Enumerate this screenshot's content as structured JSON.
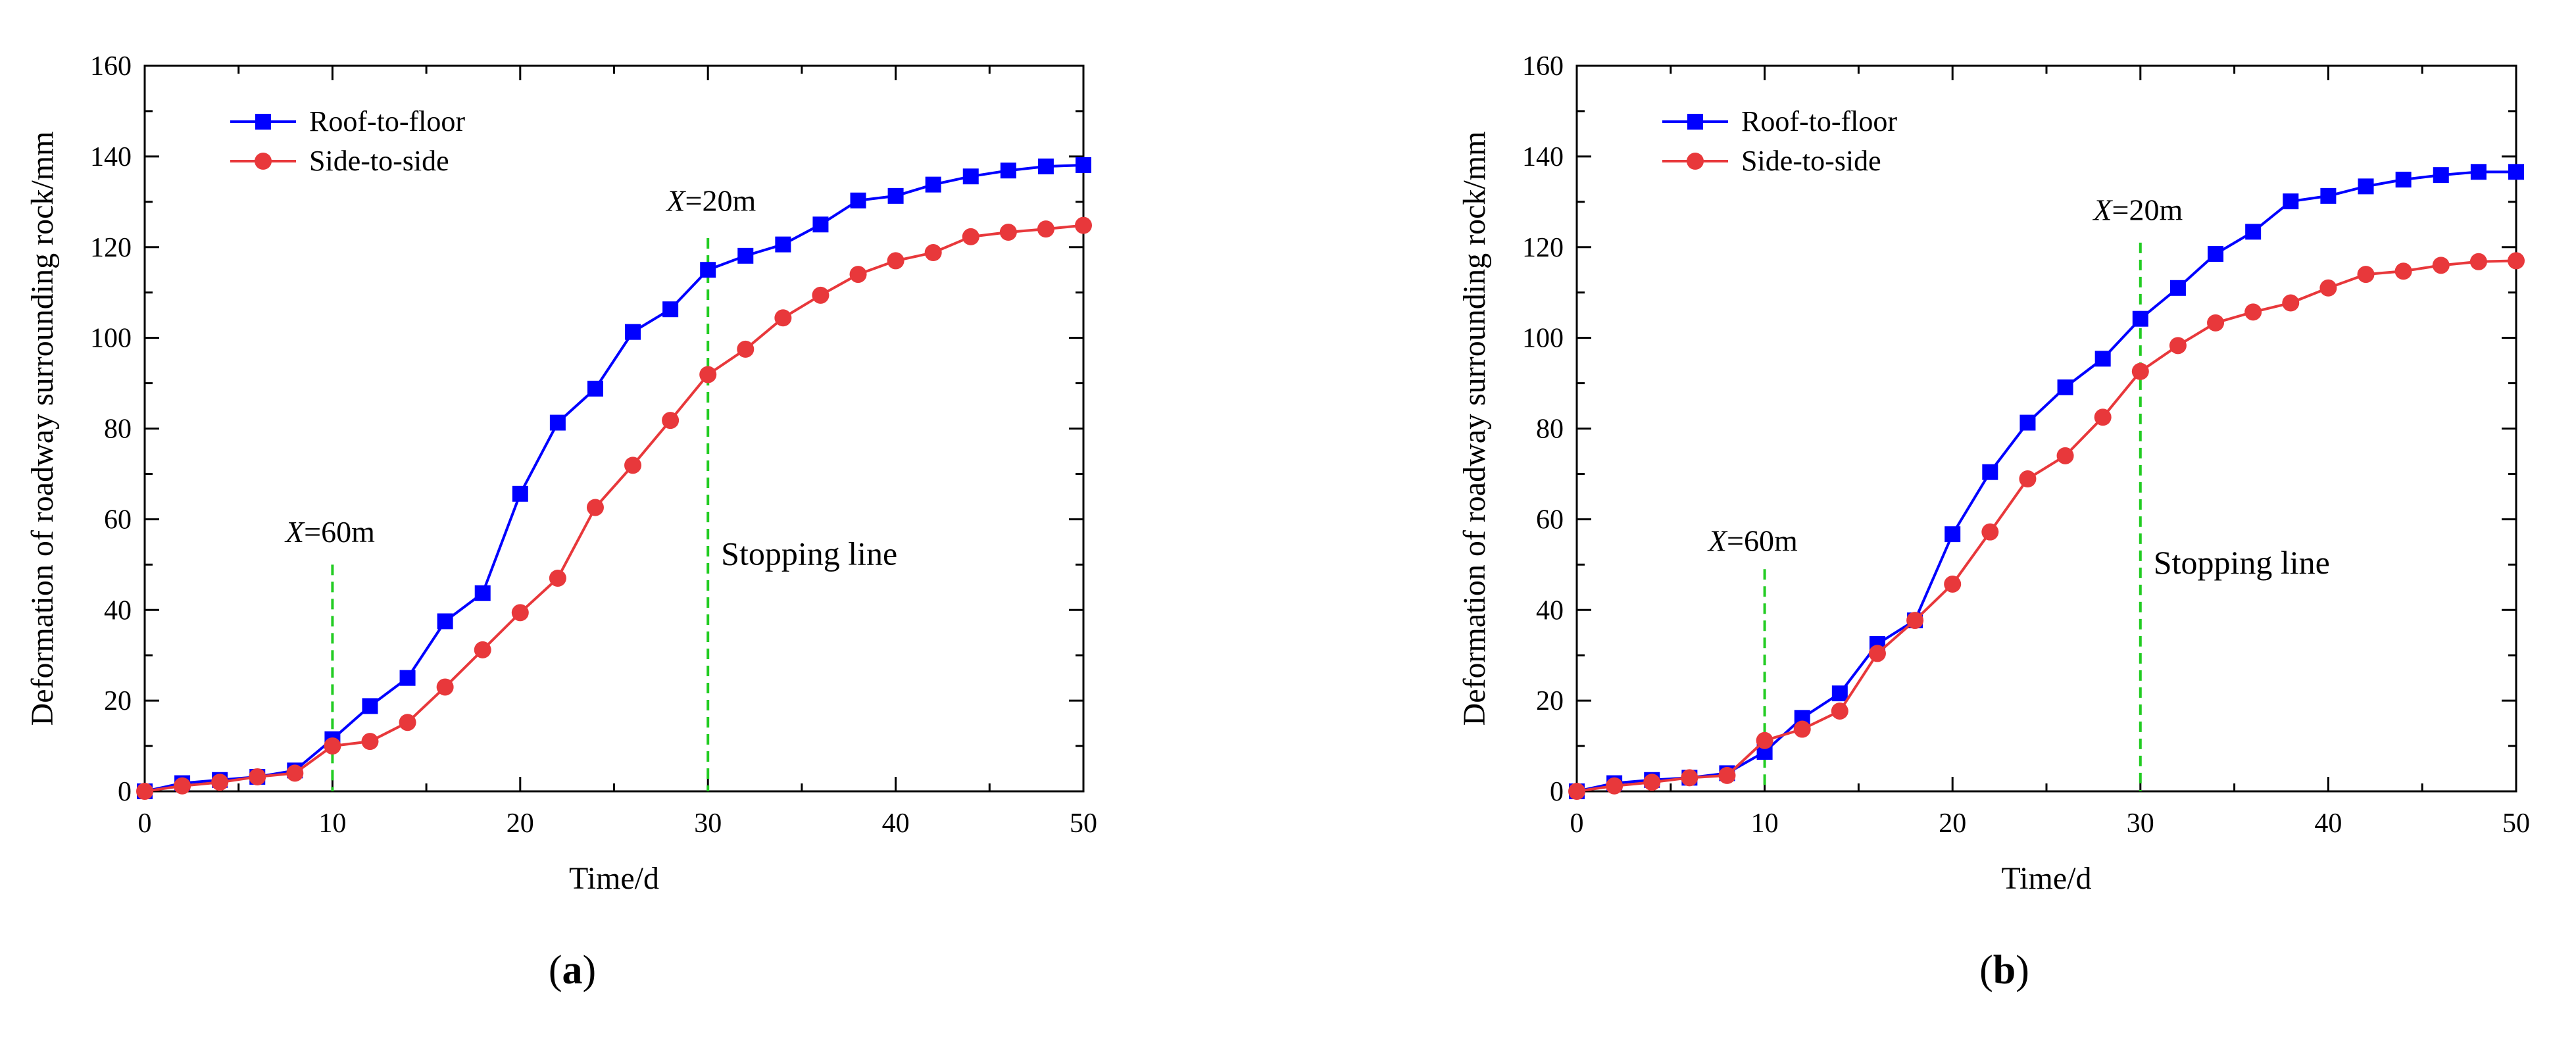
{
  "figure": {
    "panels": [
      {
        "label_open": "(",
        "label_letter": "a",
        "label_close": ")"
      },
      {
        "label_open": "(",
        "label_letter": "b",
        "label_close": ")"
      }
    ]
  },
  "chart_data": [
    {
      "type": "line",
      "panel": "a",
      "title": "",
      "xlabel": "Time/d",
      "ylabel": "Deformation of roadway surrounding rock/mm",
      "xlim": [
        0,
        50
      ],
      "ylim": [
        0,
        160
      ],
      "xticks": [
        0,
        10,
        20,
        30,
        40,
        50
      ],
      "yticks": [
        0,
        20,
        40,
        60,
        80,
        100,
        120,
        140,
        160
      ],
      "legend_position": "top-left",
      "x": [
        0,
        2,
        4,
        6,
        8,
        10,
        12,
        14,
        16,
        18,
        20,
        22,
        24,
        26,
        28,
        30,
        32,
        34,
        36,
        38,
        40,
        42,
        44,
        46,
        48,
        50
      ],
      "series": [
        {
          "name": "Roof-to-floor",
          "color": "#0000ff",
          "marker": "square",
          "values": [
            0,
            1.8,
            2.5,
            3.2,
            4.6,
            11.5,
            18.8,
            25.0,
            37.5,
            43.7,
            65.6,
            81.3,
            88.8,
            101.3,
            106.3,
            115.0,
            118.1,
            120.6,
            125.0,
            130.3,
            131.3,
            133.8,
            135.6,
            136.9,
            137.8,
            138.1
          ]
        },
        {
          "name": "Side-to-side",
          "color": "#e8383b",
          "marker": "circle",
          "values": [
            0,
            1.2,
            2.0,
            3.2,
            4.0,
            10.0,
            11.0,
            15.2,
            23.0,
            31.2,
            39.4,
            47.0,
            62.6,
            71.9,
            81.8,
            91.9,
            97.5,
            104.4,
            109.4,
            114.0,
            117.0,
            118.8,
            122.3,
            123.3,
            124.0,
            124.8
          ]
        }
      ],
      "annotations": [
        {
          "kind": "vline",
          "x": 10,
          "y_top": 50,
          "color": "#22cc22",
          "label_var": "X",
          "label_rest": "=60m",
          "label_x": 7.5,
          "label_y": 55
        },
        {
          "kind": "vline",
          "x": 30,
          "y_top": 122,
          "color": "#22cc22",
          "label_var": "X",
          "label_rest": "=20m",
          "label_x": 27.8,
          "label_y": 128
        },
        {
          "kind": "text",
          "text": "Stopping line",
          "x": 30.7,
          "y": 50
        }
      ]
    },
    {
      "type": "line",
      "panel": "b",
      "title": "",
      "xlabel": "Time/d",
      "ylabel": "Deformation of roadway surrounding rock/mm",
      "xlim": [
        0,
        50
      ],
      "ylim": [
        0,
        160
      ],
      "xticks": [
        0,
        10,
        20,
        30,
        40,
        50
      ],
      "yticks": [
        0,
        20,
        40,
        60,
        80,
        100,
        120,
        140,
        160
      ],
      "legend_position": "top-left",
      "x": [
        0,
        2,
        4,
        6,
        8,
        10,
        12,
        14,
        16,
        18,
        20,
        22,
        24,
        26,
        28,
        30,
        32,
        34,
        36,
        38,
        40,
        42,
        44,
        46,
        48,
        50
      ],
      "series": [
        {
          "name": "Roof-to-floor",
          "color": "#0000ff",
          "marker": "square",
          "values": [
            0,
            1.8,
            2.5,
            3.0,
            4.0,
            8.7,
            16.2,
            21.6,
            32.5,
            37.7,
            56.7,
            70.4,
            81.3,
            89.1,
            95.4,
            104.2,
            111.0,
            118.5,
            123.4,
            130.1,
            131.3,
            133.4,
            134.9,
            135.9,
            136.6,
            136.6
          ]
        },
        {
          "name": "Side-to-side",
          "color": "#e8383b",
          "marker": "circle",
          "values": [
            0,
            1.2,
            2.0,
            3.0,
            3.5,
            11.2,
            13.7,
            17.7,
            30.4,
            37.7,
            45.7,
            57.2,
            68.9,
            74.0,
            82.5,
            92.6,
            98.3,
            103.3,
            105.7,
            107.7,
            111.0,
            114.0,
            114.7,
            116.0,
            116.8,
            117.0
          ]
        }
      ],
      "annotations": [
        {
          "kind": "vline",
          "x": 10,
          "y_top": 49,
          "color": "#22cc22",
          "label_var": "X",
          "label_rest": "=60m",
          "label_x": 7.0,
          "label_y": 53
        },
        {
          "kind": "vline",
          "x": 30,
          "y_top": 121,
          "color": "#22cc22",
          "label_var": "X",
          "label_rest": "=20m",
          "label_x": 27.5,
          "label_y": 126
        },
        {
          "kind": "text",
          "text": "Stopping line",
          "x": 30.7,
          "y": 48
        }
      ]
    }
  ]
}
